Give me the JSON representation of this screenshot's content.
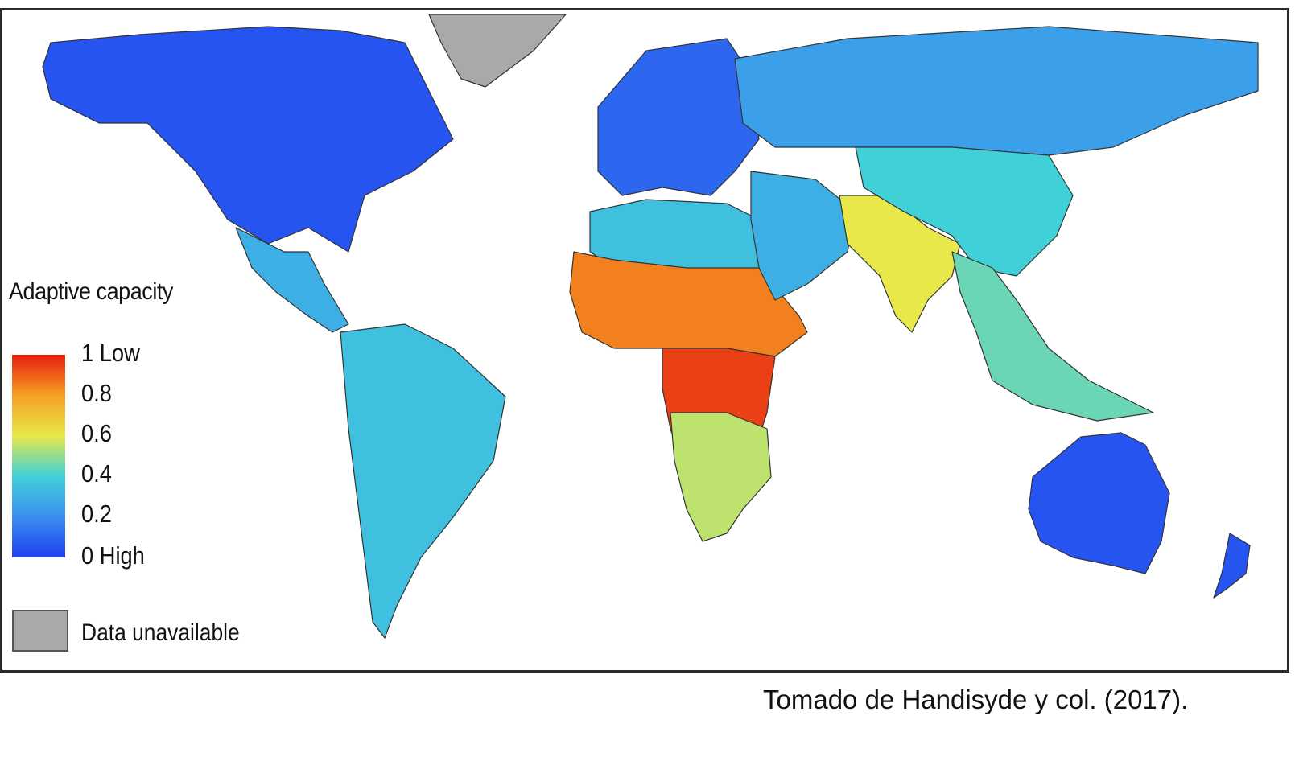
{
  "legend": {
    "title": "Adaptive capacity",
    "ticks": [
      "1 Low",
      "0.8",
      "0.6",
      "0.4",
      "0.2",
      "0 High"
    ],
    "unavailable_label": "Data unavailable",
    "scale": {
      "low_end": "1",
      "high_end": "0",
      "colors": [
        "#1e40f0",
        "#3b8ef0",
        "#40d0d8",
        "#e8e84a",
        "#f5a023",
        "#e81e10"
      ]
    },
    "unavailable_color": "#a9a9a9"
  },
  "caption": "Tomado de Handisyde y col. (2017).",
  "regions": [
    {
      "name": "North America",
      "value": 0.05
    },
    {
      "name": "Greenland",
      "value": null
    },
    {
      "name": "Central America",
      "value": 0.3
    },
    {
      "name": "South America",
      "value": 0.35
    },
    {
      "name": "Europe",
      "value": 0.1
    },
    {
      "name": "Russia",
      "value": 0.25
    },
    {
      "name": "North Africa",
      "value": 0.35
    },
    {
      "name": "Sahel",
      "value": 0.85
    },
    {
      "name": "Central Africa",
      "value": 0.95
    },
    {
      "name": "Southern Africa",
      "value": 0.55
    },
    {
      "name": "Middle East",
      "value": 0.3
    },
    {
      "name": "South Asia",
      "value": 0.6
    },
    {
      "name": "China",
      "value": 0.4
    },
    {
      "name": "Southeast Asia",
      "value": 0.45
    },
    {
      "name": "Australia",
      "value": 0.05
    },
    {
      "name": "New Zealand",
      "value": 0.05
    }
  ]
}
